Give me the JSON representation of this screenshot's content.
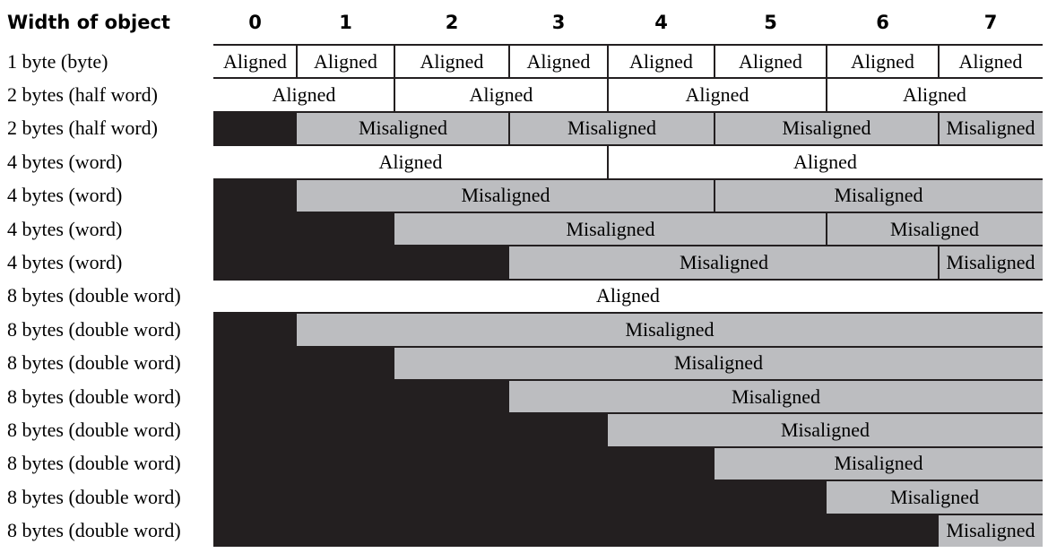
{
  "header": {
    "width_label": "Width of object",
    "offsets": [
      "0",
      "1",
      "2",
      "3",
      "4",
      "5",
      "6",
      "7"
    ]
  },
  "rows": [
    {
      "label": "1 byte (byte)",
      "segments": [
        {
          "kind": "aligned",
          "from": 0,
          "to": 1,
          "text": "Aligned"
        },
        {
          "kind": "aligned",
          "from": 1,
          "to": 2,
          "text": "Aligned"
        },
        {
          "kind": "aligned",
          "from": 2,
          "to": 3,
          "text": "Aligned"
        },
        {
          "kind": "aligned",
          "from": 3,
          "to": 4,
          "text": "Aligned"
        },
        {
          "kind": "aligned",
          "from": 4,
          "to": 5,
          "text": "Aligned"
        },
        {
          "kind": "aligned",
          "from": 5,
          "to": 6,
          "text": "Aligned"
        },
        {
          "kind": "aligned",
          "from": 6,
          "to": 7,
          "text": "Aligned"
        },
        {
          "kind": "aligned",
          "from": 7,
          "to": 8,
          "text": "Aligned"
        }
      ]
    },
    {
      "label": "2 bytes (half word)",
      "segments": [
        {
          "kind": "aligned",
          "from": 0,
          "to": 2,
          "text": "Aligned"
        },
        {
          "kind": "aligned",
          "from": 2,
          "to": 4,
          "text": "Aligned"
        },
        {
          "kind": "aligned",
          "from": 4,
          "to": 6,
          "text": "Aligned"
        },
        {
          "kind": "aligned",
          "from": 6,
          "to": 8,
          "text": "Aligned"
        }
      ]
    },
    {
      "label": "2 bytes (half word)",
      "segments": [
        {
          "kind": "blocked",
          "from": 0,
          "to": 1,
          "text": ""
        },
        {
          "kind": "misaligned",
          "from": 1,
          "to": 3,
          "text": "Misaligned"
        },
        {
          "kind": "misaligned",
          "from": 3,
          "to": 5,
          "text": "Misaligned"
        },
        {
          "kind": "misaligned",
          "from": 5,
          "to": 7,
          "text": "Misaligned"
        },
        {
          "kind": "misaligned",
          "from": 7,
          "to": 8,
          "text": "Misaligned"
        }
      ]
    },
    {
      "label": "4 bytes (word)",
      "segments": [
        {
          "kind": "aligned",
          "from": 0,
          "to": 4,
          "text": "Aligned"
        },
        {
          "kind": "aligned",
          "from": 4,
          "to": 8,
          "text": "Aligned"
        }
      ]
    },
    {
      "label": "4 bytes (word)",
      "segments": [
        {
          "kind": "blocked",
          "from": 0,
          "to": 1,
          "text": ""
        },
        {
          "kind": "misaligned",
          "from": 1,
          "to": 5,
          "text": "Misaligned"
        },
        {
          "kind": "misaligned",
          "from": 5,
          "to": 8,
          "text": "Misaligned"
        }
      ]
    },
    {
      "label": "4 bytes (word)",
      "segments": [
        {
          "kind": "blocked",
          "from": 0,
          "to": 2,
          "text": ""
        },
        {
          "kind": "misaligned",
          "from": 2,
          "to": 6,
          "text": "Misaligned"
        },
        {
          "kind": "misaligned",
          "from": 6,
          "to": 8,
          "text": "Misaligned"
        }
      ]
    },
    {
      "label": "4 bytes (word)",
      "segments": [
        {
          "kind": "blocked",
          "from": 0,
          "to": 3,
          "text": ""
        },
        {
          "kind": "misaligned",
          "from": 3,
          "to": 7,
          "text": "Misaligned"
        },
        {
          "kind": "misaligned",
          "from": 7,
          "to": 8,
          "text": "Misaligned"
        }
      ]
    },
    {
      "label": "8 bytes (double word)",
      "segments": [
        {
          "kind": "aligned",
          "from": 0,
          "to": 8,
          "text": "Aligned"
        }
      ]
    },
    {
      "label": "8 bytes (double word)",
      "segments": [
        {
          "kind": "blocked",
          "from": 0,
          "to": 1,
          "text": ""
        },
        {
          "kind": "misaligned",
          "from": 1,
          "to": 8,
          "text": "Misaligned"
        }
      ]
    },
    {
      "label": "8 bytes (double word)",
      "segments": [
        {
          "kind": "blocked",
          "from": 0,
          "to": 2,
          "text": ""
        },
        {
          "kind": "misaligned",
          "from": 2,
          "to": 8,
          "text": "Misaligned"
        }
      ]
    },
    {
      "label": "8 bytes (double word)",
      "segments": [
        {
          "kind": "blocked",
          "from": 0,
          "to": 3,
          "text": ""
        },
        {
          "kind": "misaligned",
          "from": 3,
          "to": 8,
          "text": "Misaligned"
        }
      ]
    },
    {
      "label": "8 bytes (double word)",
      "segments": [
        {
          "kind": "blocked",
          "from": 0,
          "to": 4,
          "text": ""
        },
        {
          "kind": "misaligned",
          "from": 4,
          "to": 8,
          "text": "Misaligned"
        }
      ]
    },
    {
      "label": "8 bytes (double word)",
      "segments": [
        {
          "kind": "blocked",
          "from": 0,
          "to": 5,
          "text": ""
        },
        {
          "kind": "misaligned",
          "from": 5,
          "to": 8,
          "text": "Misaligned"
        }
      ]
    },
    {
      "label": "8 bytes (double word)",
      "segments": [
        {
          "kind": "blocked",
          "from": 0,
          "to": 6,
          "text": ""
        },
        {
          "kind": "misaligned",
          "from": 6,
          "to": 8,
          "text": "Misaligned"
        }
      ]
    },
    {
      "label": "8 bytes (double word)",
      "segments": [
        {
          "kind": "blocked",
          "from": 0,
          "to": 7,
          "text": ""
        },
        {
          "kind": "misaligned",
          "from": 7,
          "to": 8,
          "text": "Misaligned"
        }
      ]
    }
  ],
  "colors": {
    "misaligned_fill": "#bcbdc0",
    "blocked_fill": "#231f20",
    "aligned_fill": "#ffffff",
    "rule": "#231f20"
  }
}
